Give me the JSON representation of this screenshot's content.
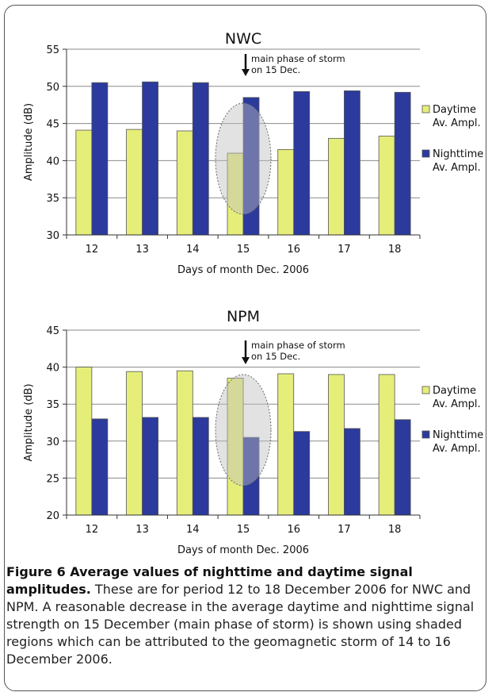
{
  "chart_data": [
    {
      "type": "bar",
      "title": "NWC",
      "xlabel": "Days of month Dec. 2006",
      "ylabel": "Amplitude (dB)",
      "ylim": [
        30,
        55
      ],
      "yticks": [
        "30",
        "35",
        "40",
        "45",
        "50",
        "55"
      ],
      "grid": true,
      "legend_position": "right",
      "categories": [
        "12",
        "13",
        "14",
        "15",
        "16",
        "17",
        "18"
      ],
      "series": [
        {
          "name": "Daytime Av. Ampl.",
          "legend_line1": "Daytime",
          "legend_line2": "Av. Ampl.",
          "color": "#e6ee7a",
          "values": [
            44.1,
            44.2,
            44.0,
            41.0,
            41.5,
            43.0,
            43.3
          ]
        },
        {
          "name": "Nighttime Av. Ampl.",
          "legend_line1": "Nighttime",
          "legend_line2": "Av. Ampl.",
          "color": "#2b3a9c",
          "values": [
            50.5,
            50.6,
            50.5,
            48.5,
            49.3,
            49.4,
            49.2
          ]
        }
      ],
      "annotation": {
        "line1": "main phase of storm",
        "line2": "on 15 Dec."
      },
      "highlight_category": "15"
    },
    {
      "type": "bar",
      "title": "NPM",
      "xlabel": "Days of month Dec. 2006",
      "ylabel": "Amplitude (dB)",
      "ylim": [
        20,
        45
      ],
      "yticks": [
        "20",
        "25",
        "30",
        "35",
        "40",
        "45"
      ],
      "grid": true,
      "legend_position": "right",
      "categories": [
        "12",
        "13",
        "14",
        "15",
        "16",
        "17",
        "18"
      ],
      "series": [
        {
          "name": "Daytime Av. Ampl.",
          "legend_line1": "Daytime",
          "legend_line2": "Av. Ampl.",
          "color": "#e6ee7a",
          "values": [
            40.0,
            39.4,
            39.5,
            38.5,
            39.1,
            39.0,
            39.0
          ]
        },
        {
          "name": "Nighttime Av. Ampl.",
          "legend_line1": "Nighttime",
          "legend_line2": "Av. Ampl.",
          "color": "#2b3a9c",
          "values": [
            33.0,
            33.2,
            33.2,
            30.5,
            31.3,
            31.7,
            32.9
          ]
        }
      ],
      "annotation": {
        "line1": "main phase of storm",
        "line2": "on 15 Dec."
      },
      "highlight_category": "15"
    }
  ],
  "caption": {
    "label": "Figure 6 Average values of nighttime and daytime signal amplitudes.",
    "text": " These are for period 12 to 18 December 2006 for NWC and NPM. A reasonable decrease in the average daytime and nighttime signal strength on 15 December (main phase of storm) is shown using shaded regions which can be attributed to the geomagnetic storm of 14 to 16 December 2006."
  }
}
